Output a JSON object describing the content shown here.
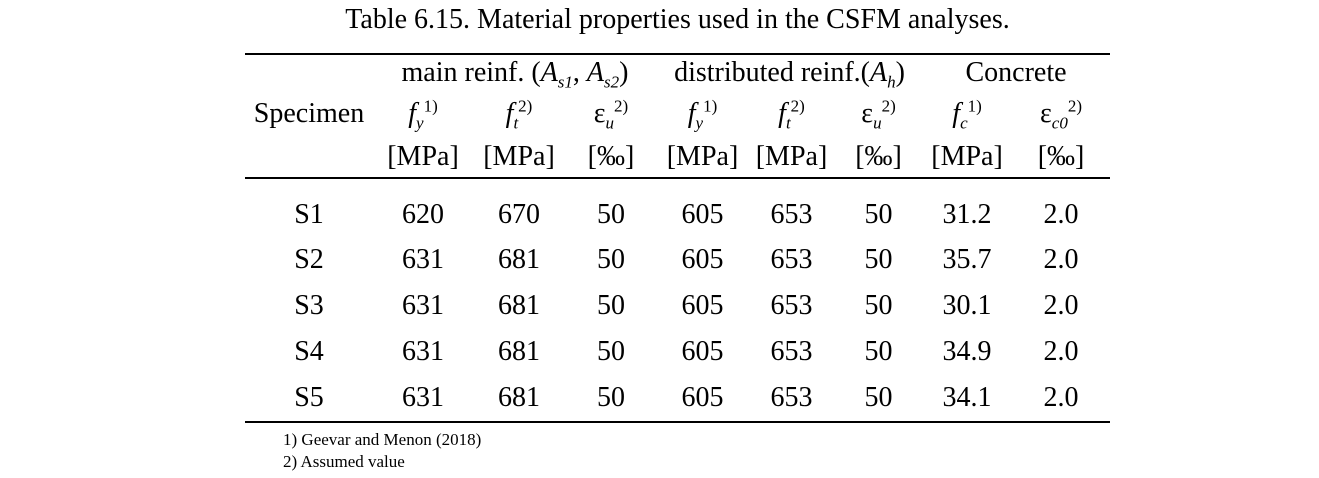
{
  "title": "Table 6.15. Material properties used in the CSFM analyses.",
  "table": {
    "specimen_header": "Specimen",
    "groups": [
      {
        "name": "main-reinf",
        "span": 3,
        "parts": [
          {
            "t": "main reinf. (",
            "i": false,
            "sub": false
          },
          {
            "t": "A",
            "i": true,
            "sub": false
          },
          {
            "t": "s1",
            "i": true,
            "sub": true
          },
          {
            "t": ", ",
            "i": false,
            "sub": false
          },
          {
            "t": "A",
            "i": true,
            "sub": false
          },
          {
            "t": "s2",
            "i": true,
            "sub": true
          },
          {
            "t": ")",
            "i": false,
            "sub": false
          }
        ]
      },
      {
        "name": "distributed-reinf",
        "span": 3,
        "parts": [
          {
            "t": "distributed reinf.(",
            "i": false,
            "sub": false
          },
          {
            "t": "A",
            "i": true,
            "sub": false
          },
          {
            "t": "h",
            "i": true,
            "sub": true
          },
          {
            "t": ")",
            "i": false,
            "sub": false
          }
        ]
      },
      {
        "name": "concrete",
        "span": 2,
        "parts": [
          {
            "t": "Concrete",
            "i": false,
            "sub": false
          }
        ]
      }
    ],
    "columns": [
      {
        "base": "f",
        "italic": true,
        "sub": "y",
        "sup": "1)",
        "unit": "[MPa]"
      },
      {
        "base": "f",
        "italic": true,
        "sub": "t",
        "sup": "2)",
        "unit": "[MPa]"
      },
      {
        "base": "ε",
        "italic": false,
        "sub": "u",
        "sup": "2)",
        "unit": "[‰]"
      },
      {
        "base": "f",
        "italic": true,
        "sub": "y",
        "sup": "1)",
        "unit": "[MPa]"
      },
      {
        "base": "f",
        "italic": true,
        "sub": "t",
        "sup": "2)",
        "unit": "[MPa]"
      },
      {
        "base": "ε",
        "italic": false,
        "sub": "u",
        "sup": "2)",
        "unit": "[‰]"
      },
      {
        "base": "f",
        "italic": true,
        "sub": "c",
        "sup": "1)",
        "unit": "[MPa]"
      },
      {
        "base": "ε",
        "italic": false,
        "sub": "c0",
        "sup": "2)",
        "unit": "[‰]"
      }
    ],
    "rows": [
      {
        "specimen": "S1",
        "values": [
          "620",
          "670",
          "50",
          "605",
          "653",
          "50",
          "31.2",
          "2.0"
        ]
      },
      {
        "specimen": "S2",
        "values": [
          "631",
          "681",
          "50",
          "605",
          "653",
          "50",
          "35.7",
          "2.0"
        ]
      },
      {
        "specimen": "S3",
        "values": [
          "631",
          "681",
          "50",
          "605",
          "653",
          "50",
          "30.1",
          "2.0"
        ]
      },
      {
        "specimen": "S4",
        "values": [
          "631",
          "681",
          "50",
          "605",
          "653",
          "50",
          "34.9",
          "2.0"
        ]
      },
      {
        "specimen": "S5",
        "values": [
          "631",
          "681",
          "50",
          "605",
          "653",
          "50",
          "34.1",
          "2.0"
        ]
      }
    ]
  },
  "footnotes": [
    "1) Geevar and Menon (2018)",
    "2) Assumed value"
  ]
}
